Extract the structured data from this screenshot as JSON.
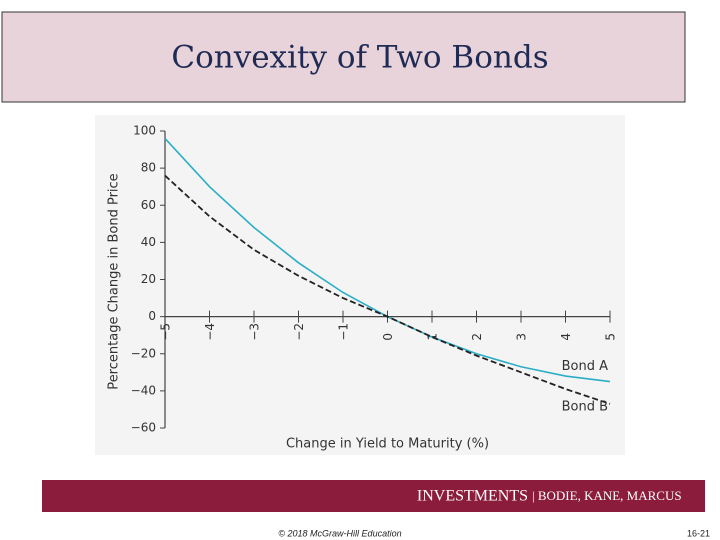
{
  "chart_data": {
    "type": "line",
    "title": "Convexity of Two Bonds",
    "xlabel": "Change in Yield to Maturity (%)",
    "ylabel": "Percentage Change in Bond Price",
    "x": [
      -5,
      -4,
      -3,
      -2,
      -1,
      0,
      1,
      2,
      3,
      4,
      5
    ],
    "series": [
      {
        "name": "Bond A",
        "color": "#2aaec6",
        "dashed": false,
        "values": [
          96,
          70,
          48,
          29,
          13,
          0,
          -11,
          -20,
          -27,
          -32,
          -35
        ]
      },
      {
        "name": "Bond B",
        "color": "#222222",
        "dashed": true,
        "values": [
          76,
          54,
          36,
          22,
          10,
          0,
          -11,
          -21,
          -30,
          -39,
          -47
        ]
      }
    ],
    "xlim": [
      -5,
      5
    ],
    "ylim": [
      -60,
      100
    ],
    "xticks": [
      {
        "value": -5,
        "label": "−5"
      },
      {
        "value": -4,
        "label": "−4"
      },
      {
        "value": -3,
        "label": "−3"
      },
      {
        "value": -2,
        "label": "−2"
      },
      {
        "value": -1,
        "label": "−1"
      },
      0,
      1,
      2,
      3,
      4,
      5
    ],
    "yticks": [
      {
        "value": -60,
        "label": "−60"
      },
      {
        "value": -40,
        "label": "−40"
      },
      {
        "value": -20,
        "label": "−20"
      },
      0,
      20,
      40,
      60,
      80,
      100
    ]
  },
  "footer": {
    "brand": "INVESTMENTS",
    "authors": "| BODIE, KANE, MARCUS",
    "copyright": "© 2018 McGraw-Hill Education",
    "page": "16-21"
  }
}
